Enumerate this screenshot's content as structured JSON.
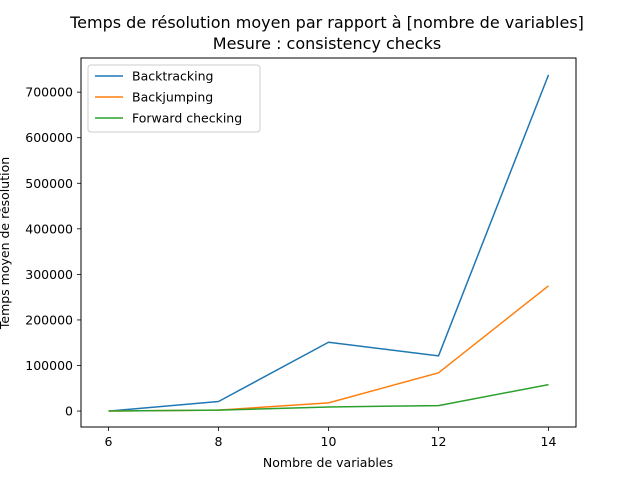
{
  "chart_data": {
    "type": "line",
    "title": "Temps de résolution moyen par rapport à [nombre de variables]",
    "subtitle": "Mesure : consistency checks",
    "xlabel": "Nombre de variables",
    "ylabel": "Temps moyen de résolution",
    "x": [
      6,
      8,
      10,
      12,
      14
    ],
    "xticks": [
      "6",
      "8",
      "10",
      "12",
      "14"
    ],
    "yticks": [
      "0",
      "100000",
      "200000",
      "300000",
      "400000",
      "500000",
      "600000",
      "700000"
    ],
    "xlim": [
      5.5,
      14.5
    ],
    "ylim": [
      -35000,
      775000
    ],
    "grid": false,
    "legend_position": "top-left",
    "series": [
      {
        "name": "Backtracking",
        "color": "#1f77b4",
        "values": [
          0,
          21000,
          151000,
          121000,
          738000
        ]
      },
      {
        "name": "Backjumping",
        "color": "#ff7f0e",
        "values": [
          0,
          2000,
          18000,
          84000,
          275000
        ]
      },
      {
        "name": "Forward checking",
        "color": "#2ca02c",
        "values": [
          0,
          2000,
          9000,
          12000,
          58000
        ]
      }
    ]
  }
}
